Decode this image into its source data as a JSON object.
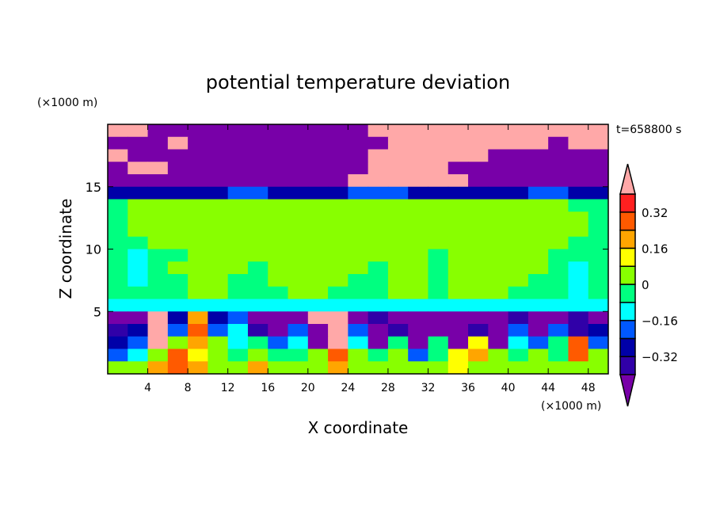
{
  "chart_data": {
    "type": "heatmap",
    "title": "potential temperature deviation",
    "xlabel": "X coordinate",
    "ylabel": "Z coordinate",
    "x_unit": "(×1000 m)",
    "y_unit": "(×1000 m)",
    "time_label": "t=658800 s",
    "xlim": [
      0,
      50
    ],
    "ylim": [
      0,
      20
    ],
    "x_ticks": [
      4,
      8,
      12,
      16,
      20,
      24,
      28,
      32,
      36,
      40,
      44,
      48
    ],
    "x_tick_labels": [
      "4",
      "8",
      "12",
      "16",
      "20",
      "24",
      "28",
      "32",
      "36",
      "40",
      "44",
      "48"
    ],
    "y_ticks": [
      5,
      10,
      15
    ],
    "y_tick_labels": [
      "5",
      "10",
      "15"
    ],
    "grid_x_centers_step": 2,
    "grid_z_centers_step": 1,
    "colorbar": {
      "levels": [
        -0.4,
        -0.32,
        -0.24,
        -0.16,
        -0.08,
        0,
        0.08,
        0.16,
        0.24,
        0.32,
        0.4
      ],
      "colors": [
        "#7800a8",
        "#3000a8",
        "#0000a8",
        "#0058ff",
        "#00ffff",
        "#00ff80",
        "#88ff00",
        "#ffff00",
        "#ffa500",
        "#ff5a00",
        "#ff2020",
        "#ffa8a8"
      ],
      "tick_values": [
        0.32,
        0.16,
        0,
        -0.16,
        -0.32
      ],
      "tick_labels": [
        "0.32",
        "0.16",
        "0",
        "−0.16",
        "−0.32"
      ]
    },
    "values_rows_top_to_bottom": [
      [
        0.5,
        0.5,
        -0.5,
        -0.5,
        -0.5,
        -0.5,
        -0.5,
        -0.5,
        -0.5,
        -0.5,
        -0.5,
        -0.5,
        -0.5,
        0.5,
        0.5,
        0.5,
        0.5,
        0.5,
        0.5,
        0.5,
        0.5,
        0.5,
        0.5,
        0.5,
        0.5
      ],
      [
        -0.5,
        -0.5,
        -0.5,
        0.5,
        -0.5,
        -0.5,
        -0.5,
        -0.5,
        -0.5,
        -0.5,
        -0.5,
        -0.5,
        -0.5,
        -0.5,
        0.5,
        0.5,
        0.5,
        0.5,
        0.5,
        0.5,
        0.5,
        0.5,
        -0.5,
        0.5,
        0.5
      ],
      [
        0.5,
        -0.5,
        -0.5,
        -0.5,
        -0.5,
        -0.5,
        -0.5,
        -0.5,
        -0.5,
        -0.5,
        -0.5,
        -0.5,
        -0.5,
        0.5,
        0.5,
        0.5,
        0.5,
        0.5,
        0.5,
        -0.5,
        -0.5,
        -0.5,
        -0.5,
        -0.5,
        -0.5
      ],
      [
        -0.5,
        0.5,
        0.5,
        -0.5,
        -0.5,
        -0.5,
        -0.5,
        -0.5,
        -0.5,
        -0.5,
        -0.5,
        -0.5,
        -0.5,
        0.5,
        0.5,
        0.5,
        0.5,
        -0.5,
        -0.5,
        -0.5,
        -0.5,
        -0.5,
        -0.5,
        -0.5,
        -0.5
      ],
      [
        -0.5,
        -0.5,
        -0.5,
        -0.5,
        -0.5,
        -0.5,
        -0.5,
        -0.5,
        -0.5,
        -0.5,
        -0.5,
        -0.5,
        0.5,
        0.5,
        0.5,
        0.5,
        0.5,
        0.5,
        -0.5,
        -0.5,
        -0.5,
        -0.5,
        -0.5,
        -0.5,
        -0.5
      ],
      [
        -0.28,
        -0.28,
        -0.28,
        -0.28,
        -0.28,
        -0.28,
        -0.2,
        -0.2,
        -0.28,
        -0.28,
        -0.28,
        -0.28,
        -0.2,
        -0.2,
        -0.2,
        -0.28,
        -0.28,
        -0.28,
        -0.28,
        -0.28,
        -0.28,
        -0.2,
        -0.2,
        -0.28,
        -0.28
      ],
      [
        -0.04,
        0.04,
        0.04,
        0.04,
        0.04,
        0.04,
        0.04,
        0.04,
        0.04,
        0.04,
        0.04,
        0.04,
        0.04,
        0.04,
        0.04,
        0.04,
        0.04,
        0.04,
        0.04,
        0.04,
        0.04,
        0.04,
        0.04,
        -0.04,
        -0.04
      ],
      [
        -0.04,
        0.04,
        0.04,
        0.04,
        0.04,
        0.04,
        0.04,
        0.04,
        0.04,
        0.04,
        0.04,
        0.04,
        0.04,
        0.04,
        0.04,
        0.04,
        0.04,
        0.04,
        0.04,
        0.04,
        0.04,
        0.04,
        0.04,
        0.04,
        -0.04
      ],
      [
        -0.04,
        0.04,
        0.04,
        0.04,
        0.04,
        0.04,
        0.04,
        0.04,
        0.04,
        0.04,
        0.04,
        0.04,
        0.04,
        0.04,
        0.04,
        0.04,
        0.04,
        0.04,
        0.04,
        0.04,
        0.04,
        0.04,
        0.04,
        0.04,
        -0.04
      ],
      [
        -0.04,
        -0.04,
        0.04,
        0.04,
        0.04,
        0.04,
        0.04,
        0.04,
        0.04,
        0.04,
        0.04,
        0.04,
        0.04,
        0.04,
        0.04,
        0.04,
        0.04,
        0.04,
        0.04,
        0.04,
        0.04,
        0.04,
        0.04,
        -0.04,
        -0.04
      ],
      [
        -0.04,
        -0.12,
        -0.04,
        -0.04,
        0.04,
        0.04,
        0.04,
        0.04,
        0.04,
        0.04,
        0.04,
        0.04,
        0.04,
        0.04,
        0.04,
        0.04,
        -0.04,
        0.04,
        0.04,
        0.04,
        0.04,
        0.04,
        -0.04,
        -0.04,
        -0.04
      ],
      [
        -0.04,
        -0.12,
        -0.04,
        0.04,
        0.04,
        0.04,
        0.04,
        -0.04,
        0.04,
        0.04,
        0.04,
        0.04,
        0.04,
        -0.04,
        0.04,
        0.04,
        -0.04,
        0.04,
        0.04,
        0.04,
        0.04,
        0.04,
        -0.04,
        -0.12,
        -0.04
      ],
      [
        -0.04,
        -0.12,
        -0.04,
        -0.04,
        0.04,
        0.04,
        -0.04,
        -0.04,
        0.04,
        0.04,
        0.04,
        0.04,
        -0.04,
        -0.04,
        0.04,
        0.04,
        -0.04,
        0.04,
        0.04,
        0.04,
        0.04,
        -0.04,
        -0.04,
        -0.12,
        -0.04
      ],
      [
        -0.04,
        -0.04,
        -0.04,
        -0.04,
        0.04,
        0.04,
        -0.04,
        -0.04,
        -0.04,
        0.04,
        0.04,
        -0.04,
        -0.04,
        -0.04,
        0.04,
        0.04,
        -0.04,
        0.04,
        0.04,
        0.04,
        -0.04,
        -0.04,
        -0.04,
        -0.12,
        -0.04
      ],
      [
        -0.12,
        -0.12,
        -0.12,
        -0.12,
        -0.12,
        -0.12,
        -0.12,
        -0.12,
        -0.12,
        -0.12,
        -0.12,
        -0.12,
        -0.12,
        -0.12,
        -0.12,
        -0.12,
        -0.12,
        -0.12,
        -0.12,
        -0.12,
        -0.12,
        -0.12,
        -0.12,
        -0.12,
        -0.12
      ],
      [
        -0.5,
        -0.5,
        0.5,
        -0.28,
        0.2,
        -0.28,
        -0.2,
        -0.5,
        -0.5,
        -0.5,
        0.5,
        0.5,
        -0.5,
        -0.36,
        -0.5,
        -0.5,
        -0.5,
        -0.5,
        -0.5,
        -0.5,
        -0.36,
        -0.5,
        -0.5,
        -0.36,
        -0.5
      ],
      [
        -0.36,
        -0.28,
        0.5,
        -0.2,
        0.28,
        -0.2,
        -0.12,
        -0.36,
        -0.5,
        -0.2,
        -0.5,
        0.5,
        -0.2,
        -0.5,
        -0.36,
        -0.5,
        -0.5,
        -0.5,
        -0.36,
        -0.5,
        -0.2,
        -0.5,
        -0.2,
        -0.36,
        -0.28
      ],
      [
        -0.28,
        -0.2,
        0.5,
        0.04,
        0.2,
        0.04,
        -0.12,
        -0.04,
        -0.2,
        -0.12,
        -0.5,
        0.5,
        -0.12,
        -0.5,
        -0.04,
        -0.5,
        -0.04,
        -0.5,
        0.12,
        -0.5,
        -0.12,
        -0.2,
        -0.04,
        0.28,
        -0.2
      ],
      [
        -0.2,
        -0.12,
        0.04,
        0.28,
        0.12,
        0.04,
        -0.04,
        0.04,
        -0.04,
        -0.04,
        0.04,
        0.28,
        0.04,
        -0.04,
        0.04,
        -0.2,
        -0.04,
        0.12,
        0.2,
        0.04,
        -0.04,
        0.04,
        -0.04,
        0.28,
        0.04
      ],
      [
        0.04,
        0.04,
        0.2,
        0.28,
        0.2,
        0.04,
        0.04,
        0.2,
        0.04,
        0.04,
        0.04,
        0.2,
        0.04,
        0.04,
        0.04,
        0.04,
        0.04,
        0.12,
        0.04,
        0.04,
        0.04,
        0.04,
        0.04,
        0.04,
        0.04
      ]
    ]
  }
}
